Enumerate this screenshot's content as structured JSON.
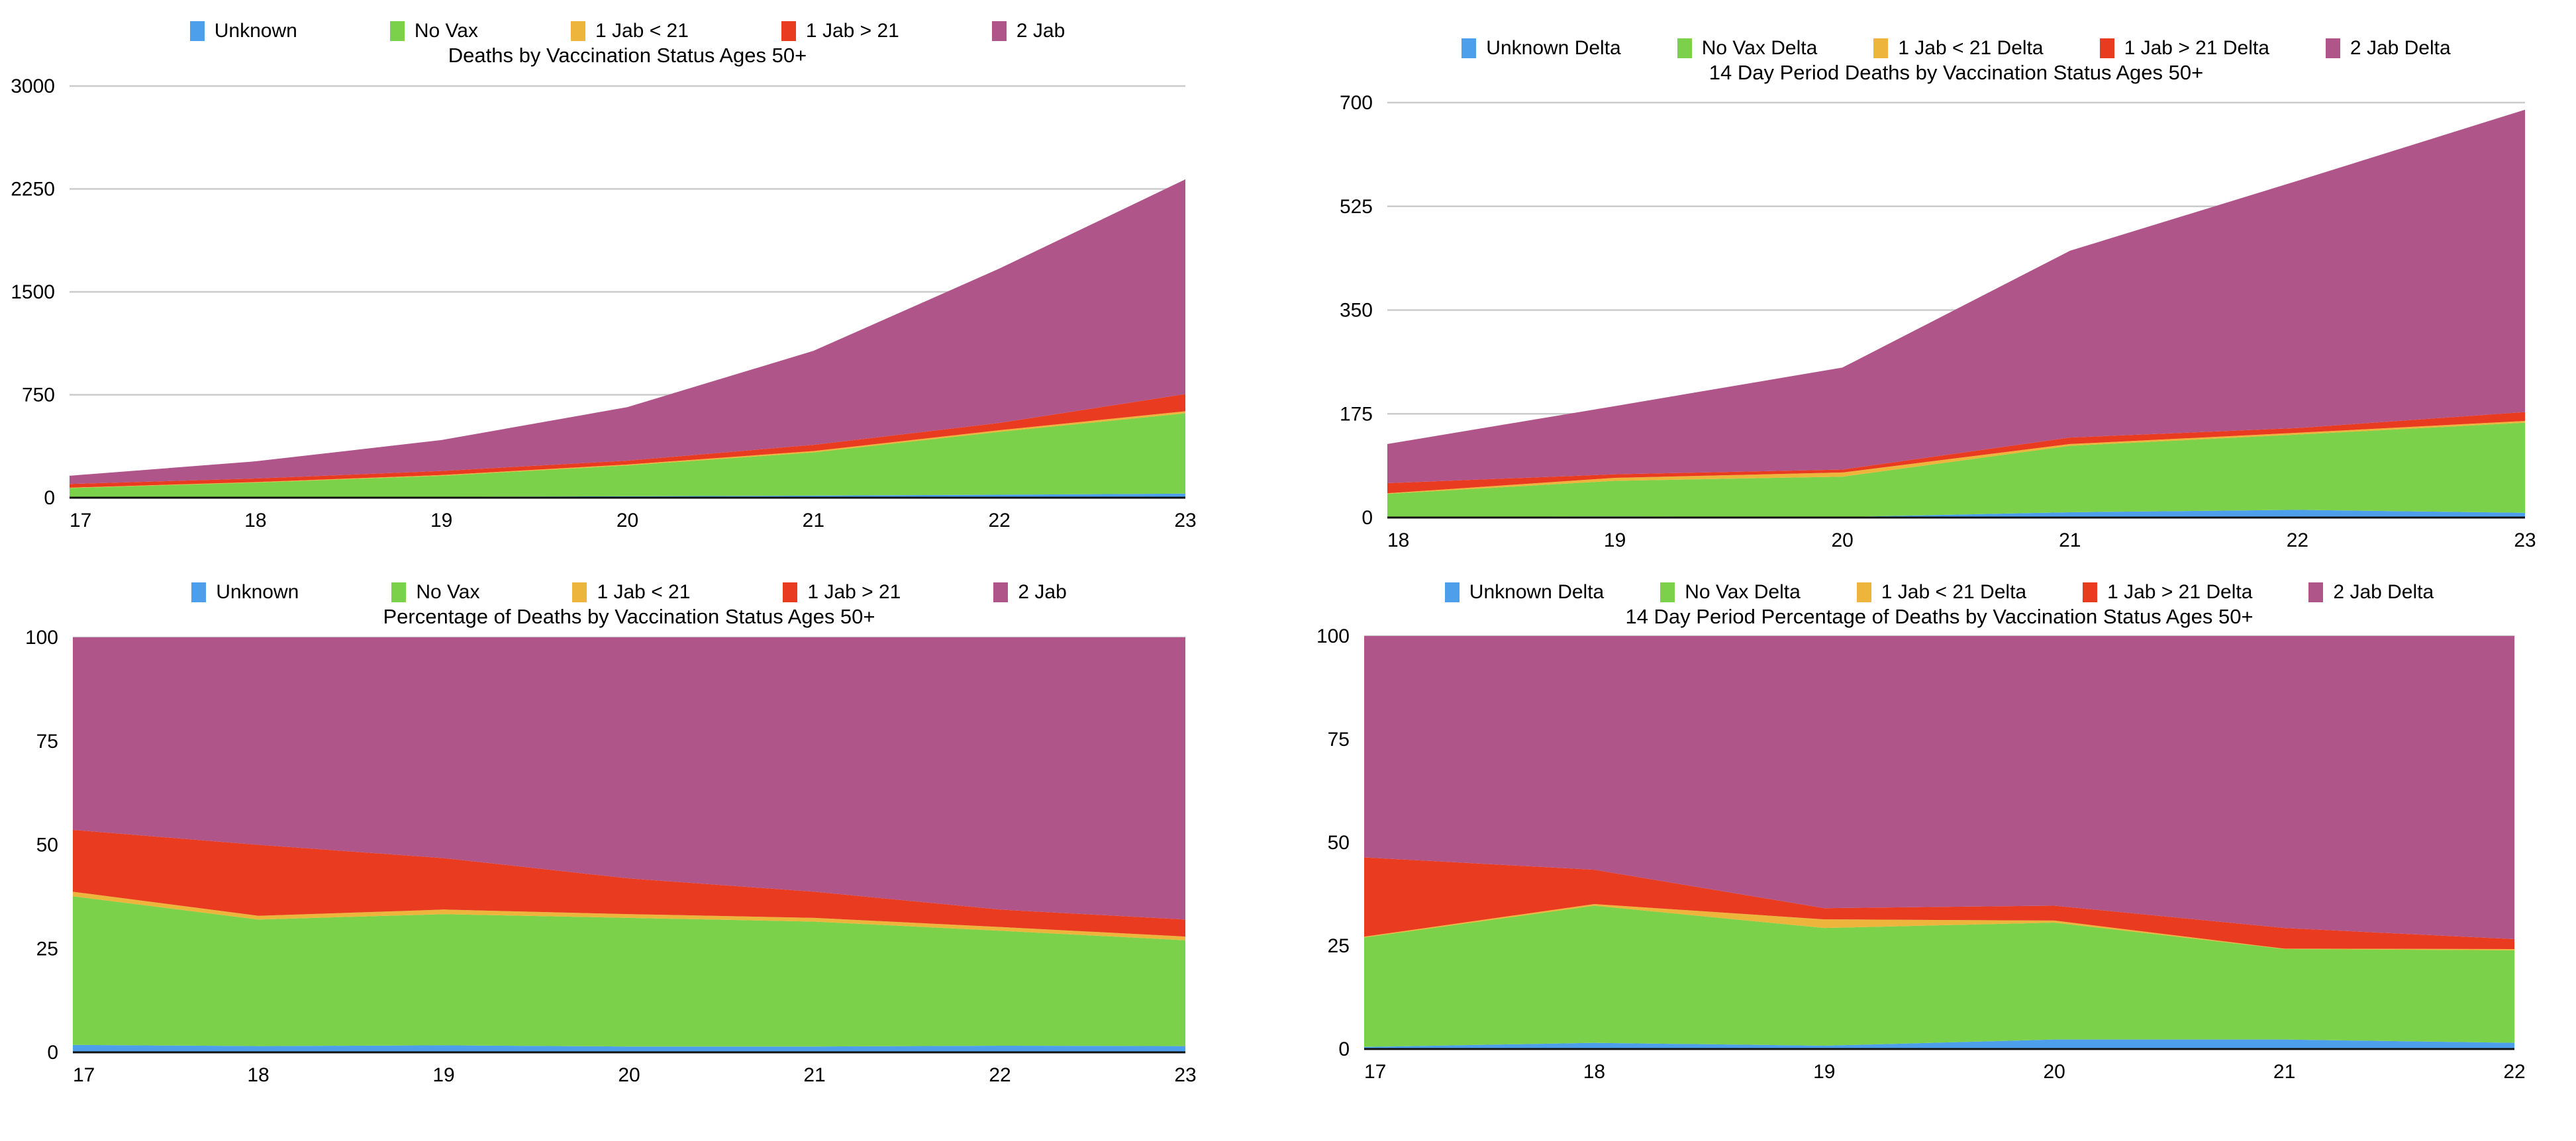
{
  "page": {
    "background": "#FFFFFF"
  },
  "palette": {
    "unknown": "#4D9FEC",
    "no_vax": "#7CD14A",
    "jab1_lt21": "#EDB53C",
    "jab1_gt21": "#E93B1F",
    "jab2": "#B05589"
  },
  "grid_color": "#CBCBCB",
  "axis_color": "#111111",
  "text_color": "#000000",
  "chart_data": [
    {
      "type": "area",
      "stacked": true,
      "title": "Deaths by Vaccination Status Ages 50+",
      "xlabel": "",
      "ylabel": "",
      "x": [
        17,
        18,
        19,
        20,
        21,
        22,
        23
      ],
      "ylim": [
        0,
        3000
      ],
      "yticks": [
        0,
        750,
        1500,
        2250,
        3000
      ],
      "grid": true,
      "legend_position": "top",
      "series": [
        {
          "name": "Unknown",
          "color_key": "unknown",
          "values": [
            5,
            6,
            7,
            10,
            15,
            22,
            30
          ]
        },
        {
          "name": "No Vax",
          "color_key": "no_vax",
          "values": [
            65,
            104,
            153,
            225,
            315,
            458,
            585
          ]
        },
        {
          "name": "1 Jab < 21",
          "color_key": "jab1_lt21",
          "values": [
            3,
            4,
            5,
            7,
            10,
            12,
            15
          ]
        },
        {
          "name": "1 Jab > 21",
          "color_key": "jab1_gt21",
          "values": [
            27,
            26,
            30,
            28,
            45,
            53,
            125
          ]
        },
        {
          "name": "2 Jab",
          "color_key": "jab2",
          "values": [
            60,
            125,
            225,
            390,
            685,
            1125,
            1565
          ]
        }
      ]
    },
    {
      "type": "area",
      "stacked": true,
      "title": "14 Day Period Deaths by Vaccination Status Ages 50+",
      "xlabel": "",
      "ylabel": "",
      "x": [
        18,
        19,
        20,
        21,
        22,
        23
      ],
      "ylim": [
        0,
        700
      ],
      "yticks": [
        0,
        175,
        350,
        525,
        700
      ],
      "grid": true,
      "legend_position": "top",
      "series": [
        {
          "name": "Unknown Delta",
          "color_key": "unknown",
          "values": [
            1,
            2,
            1,
            9,
            13,
            8
          ]
        },
        {
          "name": "No Vax Delta",
          "color_key": "no_vax",
          "values": [
            39,
            60,
            68,
            112,
            127,
            152
          ]
        },
        {
          "name": "1 Jab < 21 Delta",
          "color_key": "jab1_lt21",
          "values": [
            1,
            5,
            7,
            3,
            3,
            3
          ]
        },
        {
          "name": "1 Jab > 21 Delta",
          "color_key": "jab1_gt21",
          "values": [
            17,
            6,
            5,
            11,
            8,
            15
          ]
        },
        {
          "name": "2 Jab Delta",
          "color_key": "jab2",
          "values": [
            66,
            115,
            172,
            315,
            417,
            510
          ]
        }
      ]
    },
    {
      "type": "area",
      "stacked": true,
      "title": "Percentage of Deaths by Vaccination Status Ages 50+",
      "xlabel": "",
      "ylabel": "",
      "x": [
        17,
        18,
        19,
        20,
        21,
        22,
        23
      ],
      "ylim": [
        0,
        100
      ],
      "yticks": [
        0,
        25,
        50,
        75,
        100
      ],
      "grid": true,
      "legend_position": "top",
      "series": [
        {
          "name": "Unknown",
          "color_key": "unknown",
          "values": [
            1.8,
            1.5,
            1.7,
            1.4,
            1.4,
            1.6,
            1.5
          ]
        },
        {
          "name": "No Vax",
          "color_key": "no_vax",
          "values": [
            35.8,
            30.5,
            31.6,
            31.0,
            30.1,
            27.7,
            25.5
          ]
        },
        {
          "name": "1 Jab < 21",
          "color_key": "jab1_lt21",
          "values": [
            1.1,
            0.9,
            1.1,
            0.9,
            0.9,
            0.9,
            0.9
          ]
        },
        {
          "name": "1 Jab > 21",
          "color_key": "jab1_gt21",
          "values": [
            14.9,
            17.1,
            12.4,
            8.6,
            6.3,
            4.2,
            4.1
          ]
        },
        {
          "name": "2 Jab",
          "color_key": "jab2",
          "values": [
            46.4,
            50.0,
            53.2,
            58.1,
            61.3,
            65.6,
            68.0
          ]
        }
      ]
    },
    {
      "type": "area",
      "stacked": true,
      "title": "14 Day Period Percentage of Deaths by Vaccination Status Ages 50+",
      "xlabel": "",
      "ylabel": "",
      "x": [
        17,
        18,
        19,
        20,
        21,
        22
      ],
      "ylim": [
        0,
        100
      ],
      "yticks": [
        0,
        25,
        50,
        75,
        100
      ],
      "grid": true,
      "legend_position": "top",
      "series": [
        {
          "name": "Unknown Delta",
          "color_key": "unknown",
          "values": [
            0.5,
            1.5,
            0.8,
            2.3,
            2.3,
            1.5
          ]
        },
        {
          "name": "No Vax Delta",
          "color_key": "no_vax",
          "values": [
            26.5,
            33.2,
            28.5,
            28.3,
            21.9,
            22.4
          ]
        },
        {
          "name": "1 Jab < 21 Delta",
          "color_key": "jab1_lt21",
          "values": [
            0.2,
            0.4,
            2.1,
            0.5,
            0.1,
            0.3
          ]
        },
        {
          "name": "1 Jab > 21 Delta",
          "color_key": "jab1_gt21",
          "values": [
            19.2,
            8.3,
            2.7,
            3.6,
            5.0,
            2.4
          ]
        },
        {
          "name": "2 Jab Delta",
          "color_key": "jab2",
          "values": [
            53.6,
            56.6,
            65.9,
            65.3,
            70.7,
            73.4
          ]
        }
      ]
    }
  ]
}
